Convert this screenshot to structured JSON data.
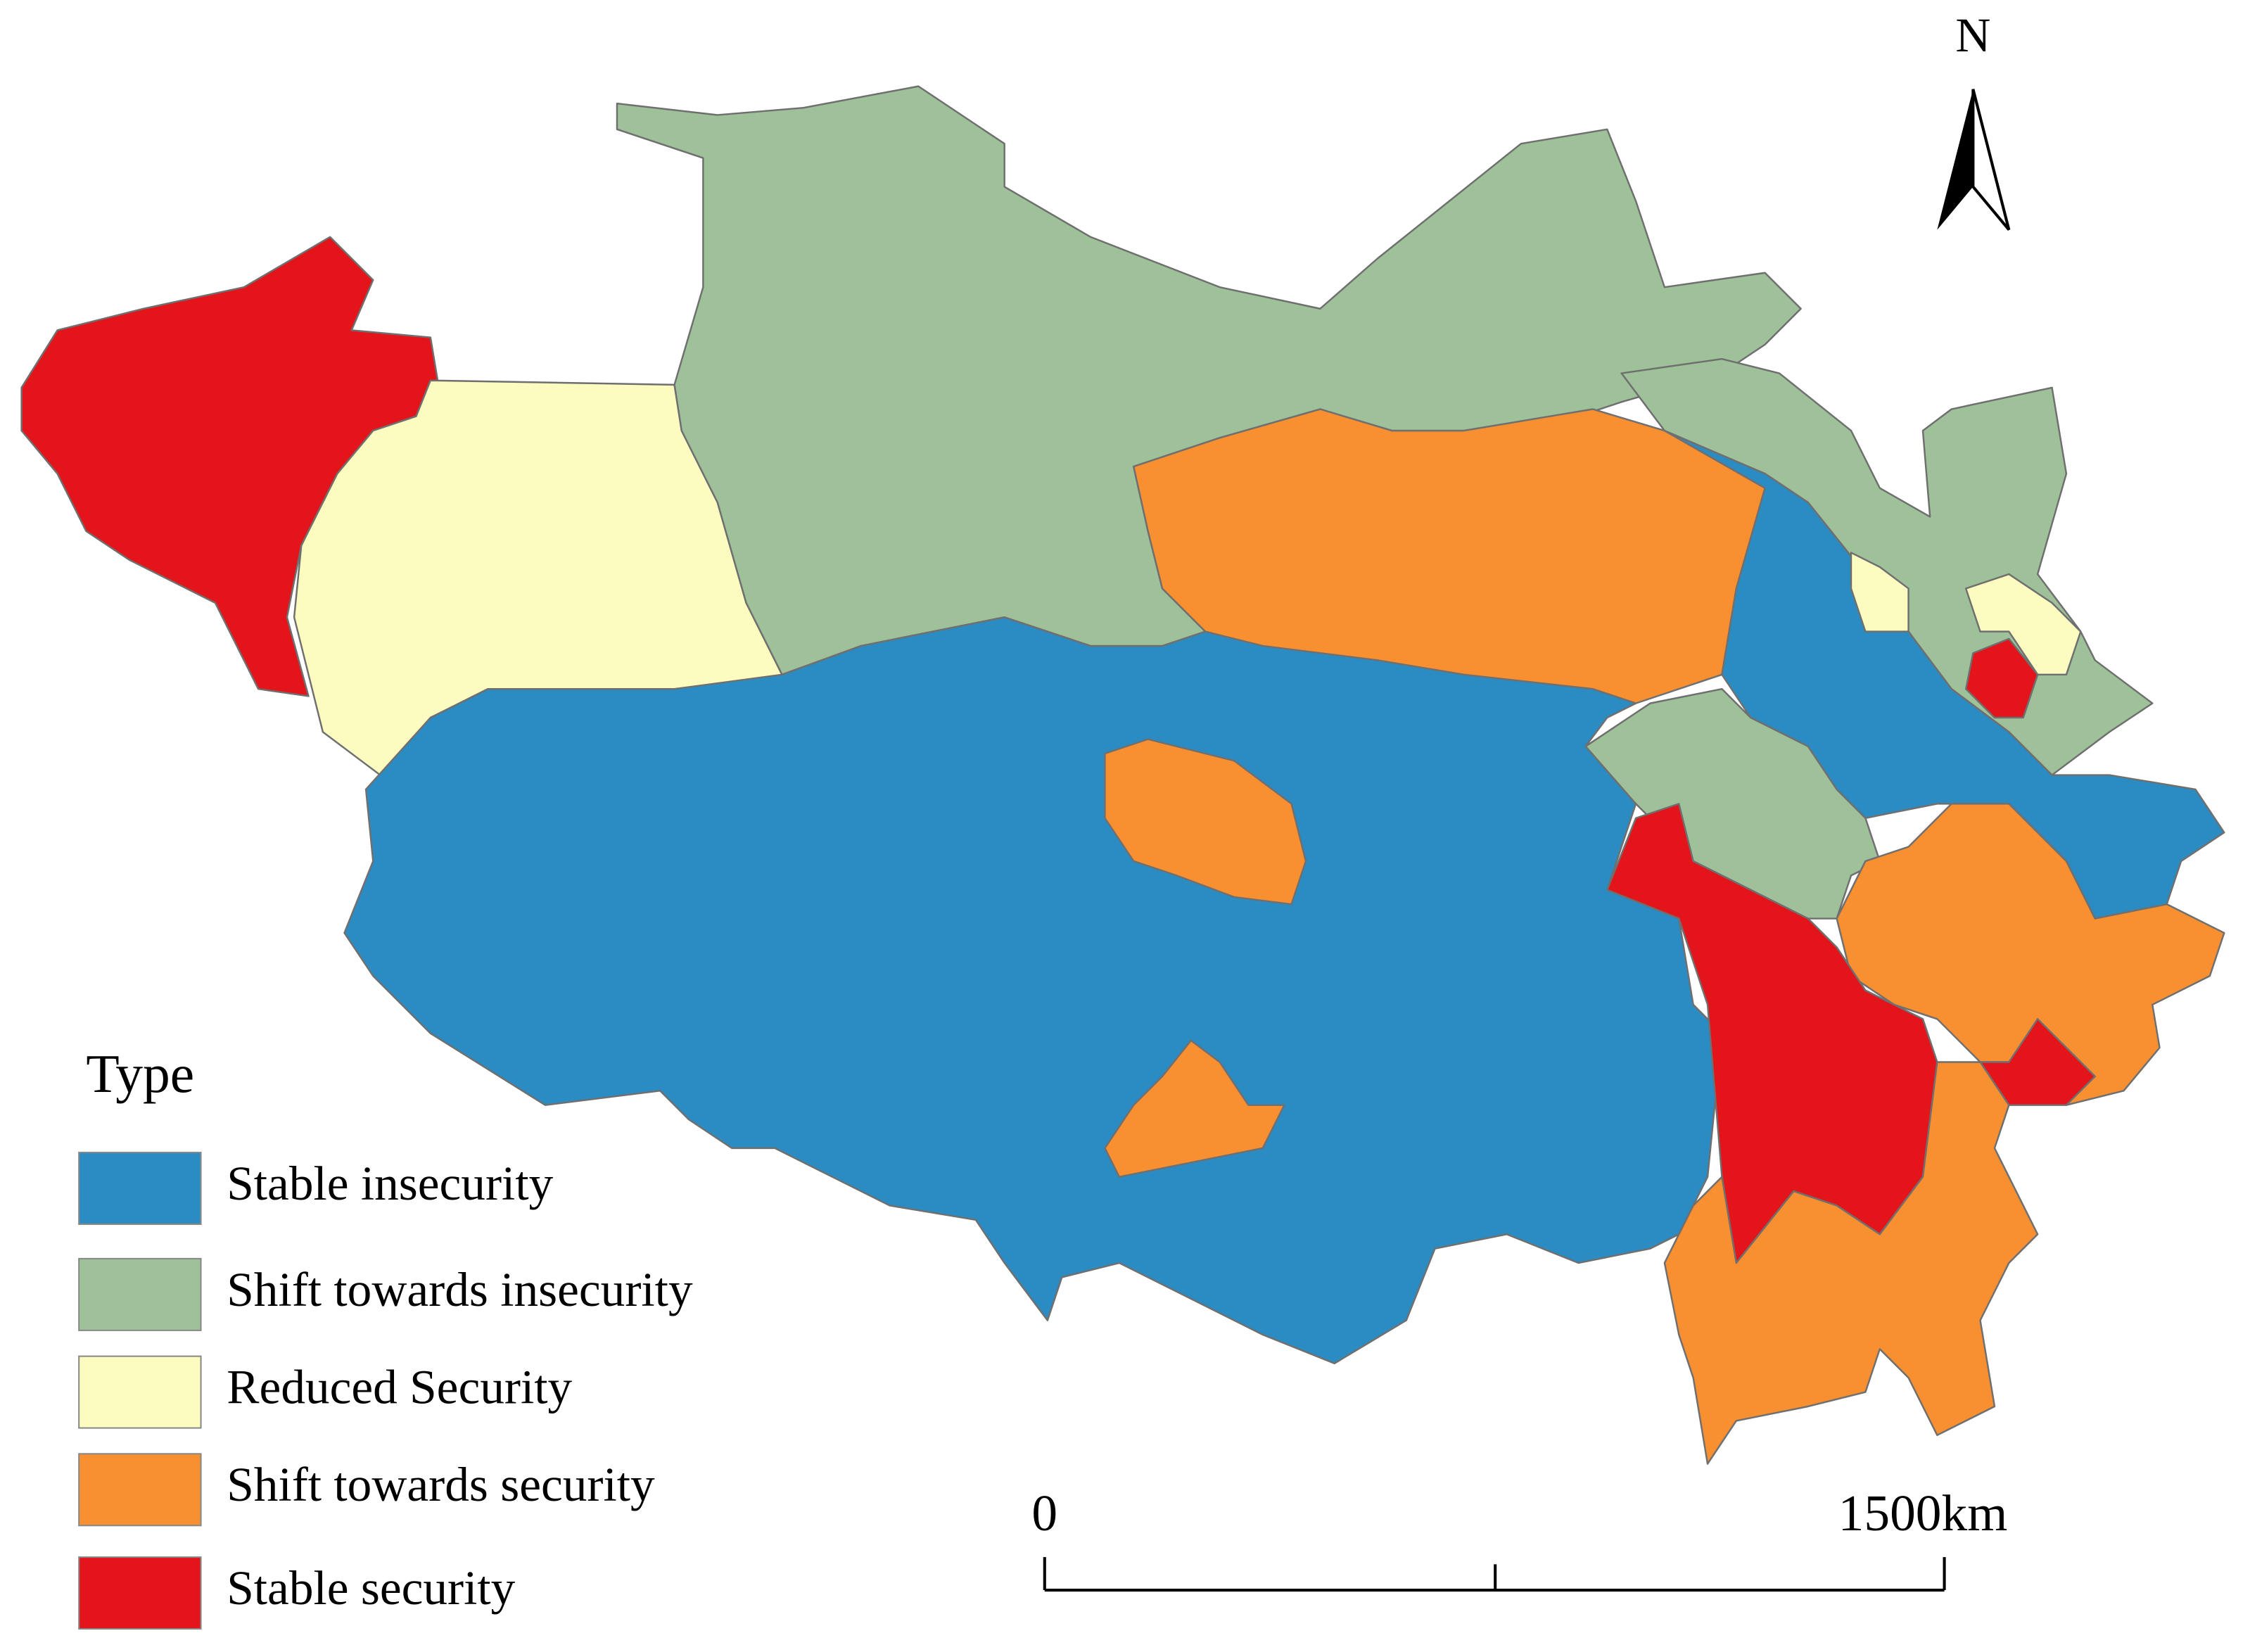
{
  "legend": {
    "title": "Type",
    "items": [
      {
        "label": "Stable insecurity",
        "color": "#2b8cc4"
      },
      {
        "label": "Shift towards insecurity",
        "color": "#9fc19a"
      },
      {
        "label": "Reduced Security",
        "color": "#fdfcc0"
      },
      {
        "label": "Shift towards security",
        "color": "#f88f31"
      },
      {
        "label": "Stable security",
        "color": "#e3141a"
      }
    ]
  },
  "north": "N",
  "scale_bar": {
    "start": "0",
    "end": "1500km"
  }
}
